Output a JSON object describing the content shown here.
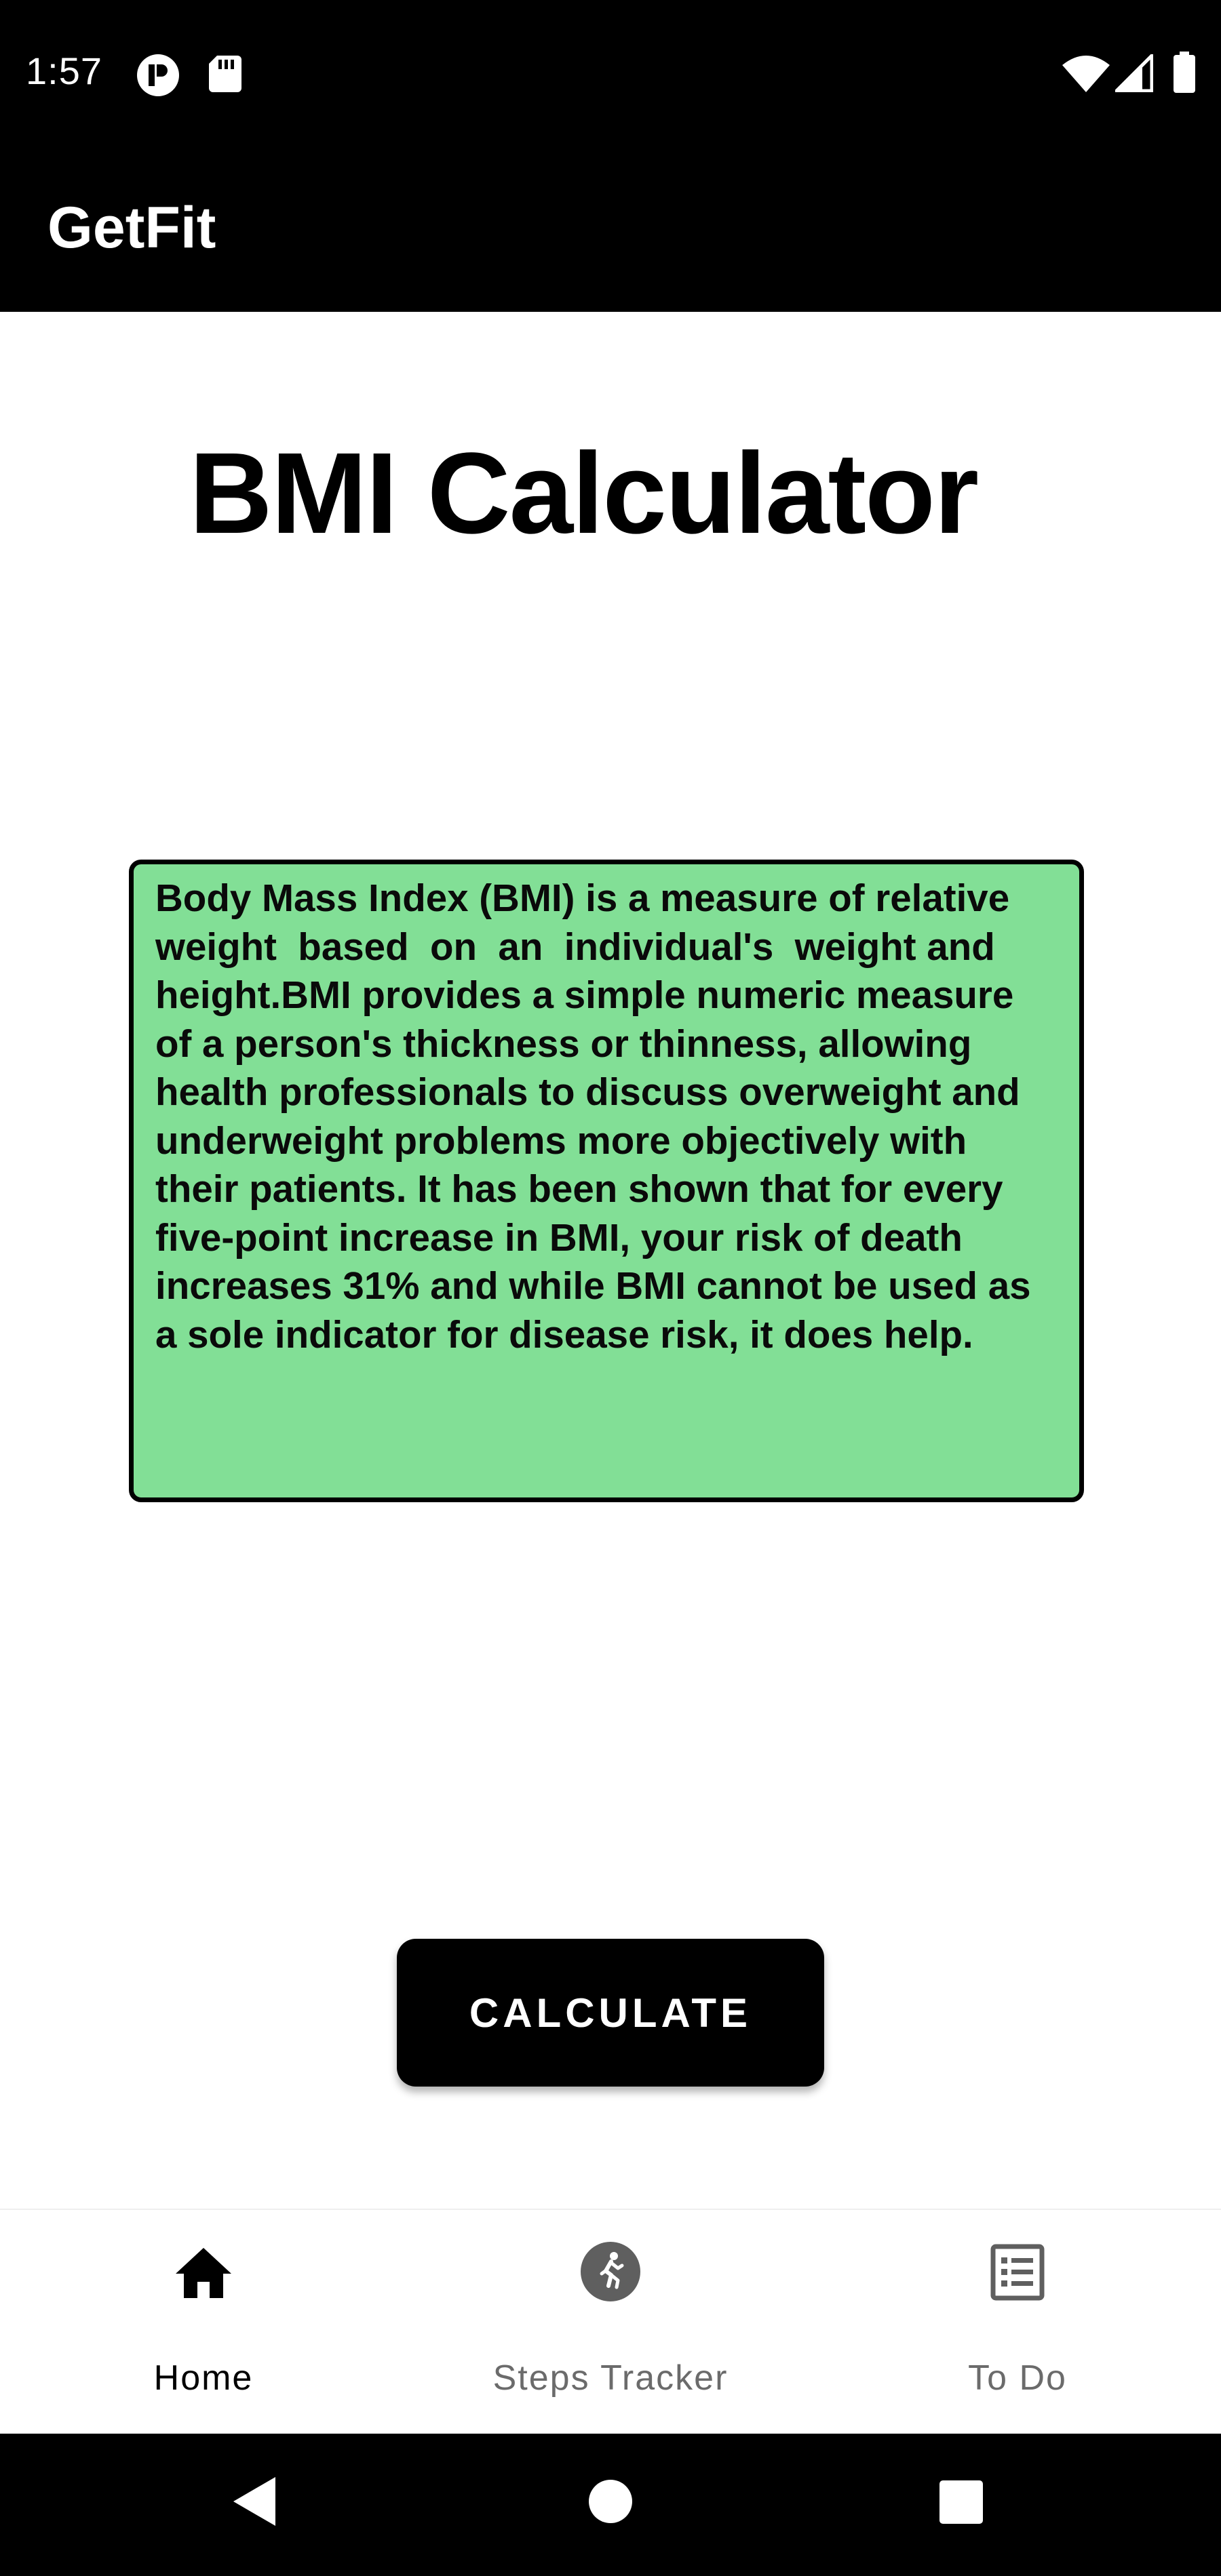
{
  "status_bar": {
    "time": "1:57",
    "left_icons": [
      "notification-icon",
      "sd-card-icon"
    ],
    "right_icons": [
      "wifi-icon",
      "signal-icon",
      "battery-icon"
    ]
  },
  "app_bar": {
    "title": "GetFit"
  },
  "main": {
    "title": "BMI Calculator",
    "description_lines": [
      "Body Mass Index (BMI) is a measure of relative",
      "weight  based  on  an  individual's  weight and",
      "height.BMI provides a simple numeric measure",
      "of a person's thickness or thinness, allowing",
      "health professionals to discuss overweight and",
      "underweight problems more objectively with",
      "their patients. It has been shown that for every",
      "five-point increase in BMI, your risk of death",
      "increases 31% and while BMI cannot be used as",
      "a sole indicator for disease risk, it does help."
    ],
    "calculate_label": "CALCULATE",
    "box_color": "#82df96"
  },
  "bottom_nav": {
    "items": [
      {
        "label": "Home",
        "icon": "home-icon",
        "active": true
      },
      {
        "label": "Steps Tracker",
        "icon": "running-icon",
        "active": false
      },
      {
        "label": "To Do",
        "icon": "list-icon",
        "active": false
      }
    ]
  },
  "system_nav": {
    "buttons": [
      "back-icon",
      "home-circle-icon",
      "recents-icon"
    ]
  }
}
